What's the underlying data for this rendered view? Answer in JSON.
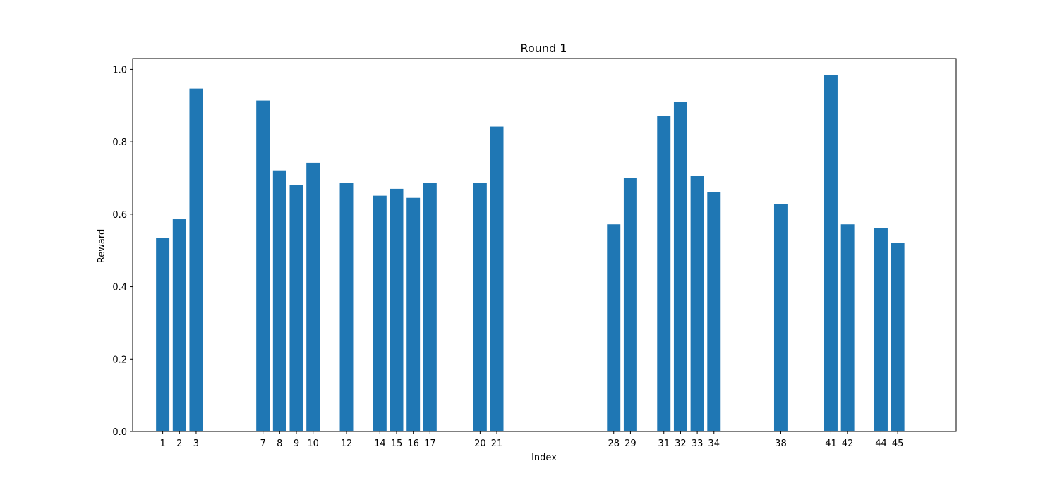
{
  "chart_data": {
    "type": "bar",
    "title": "Round 1",
    "xlabel": "Index",
    "ylabel": "Reward",
    "ylim": [
      0,
      1.03
    ],
    "xlim": [
      -0.8,
      48.5
    ],
    "x": [
      1,
      2,
      3,
      7,
      8,
      9,
      10,
      12,
      14,
      15,
      16,
      17,
      20,
      21,
      28,
      29,
      31,
      32,
      33,
      34,
      38,
      41,
      42,
      44,
      45
    ],
    "values": [
      0.535,
      0.586,
      0.947,
      0.914,
      0.721,
      0.68,
      0.742,
      0.686,
      0.651,
      0.67,
      0.645,
      0.686,
      0.686,
      0.842,
      0.572,
      0.699,
      0.871,
      0.91,
      0.705,
      0.661,
      0.627,
      0.984,
      0.572,
      0.561,
      0.52
    ],
    "xticks": [
      "1",
      "2",
      "3",
      "7",
      "8",
      "9",
      "10",
      "12",
      "14",
      "15",
      "16",
      "17",
      "20",
      "21",
      "28",
      "29",
      "31",
      "32",
      "33",
      "34",
      "38",
      "41",
      "42",
      "44",
      "45"
    ],
    "yticks": [
      "0.0",
      "0.2",
      "0.4",
      "0.6",
      "0.8",
      "1.0"
    ],
    "ytick_values": [
      0,
      0.2,
      0.4,
      0.6,
      0.8,
      1.0
    ],
    "bar_color": "#1f77b4",
    "grid": false,
    "legend": false
  }
}
